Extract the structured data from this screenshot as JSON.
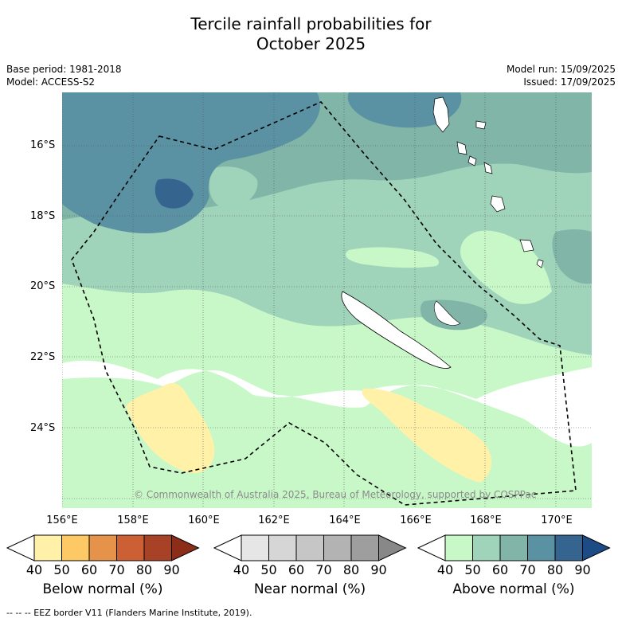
{
  "title_line1": "Tercile rainfall probabilities for",
  "title_line2": "October 2025",
  "base_period": "Base period: 1981-2018",
  "model": "Model: ACCESS-S2",
  "model_run": "Model run: 15/09/2025",
  "issued": "Issued: 17/09/2025",
  "lat_labels": [
    "16°S",
    "18°S",
    "20°S",
    "22°S",
    "24°S"
  ],
  "lon_labels": [
    "156°E",
    "158°E",
    "160°E",
    "162°E",
    "164°E",
    "166°E",
    "168°E",
    "170°E"
  ],
  "copyright": "© Commonwealth of Australia 2025, Bureau of Meteorology, supported by COSPPac",
  "legend": {
    "below": {
      "title": "Below normal (%)",
      "ticks": [
        "40",
        "50",
        "60",
        "70",
        "80",
        "90"
      ],
      "colors": [
        "#ffffff",
        "#fff1a8",
        "#fdc964",
        "#e5934a",
        "#cc5f33",
        "#a84226",
        "#8c2d1a"
      ]
    },
    "near": {
      "title": "Near normal (%)",
      "ticks": [
        "40",
        "50",
        "60",
        "70",
        "80",
        "90"
      ],
      "colors": [
        "#ffffff",
        "#e6e6e6",
        "#d6d6d6",
        "#c6c6c6",
        "#b3b3b3",
        "#9e9e9e",
        "#888888"
      ]
    },
    "above": {
      "title": "Above normal (%)",
      "ticks": [
        "40",
        "50",
        "60",
        "70",
        "80",
        "90"
      ],
      "colors": [
        "#ffffff",
        "#c8f8c8",
        "#9fd4bb",
        "#80b5a8",
        "#5a92a4",
        "#35648f",
        "#1c4b86"
      ]
    }
  },
  "footer": "--  --  -- EEZ border V11 (Flanders Marine Institute, 2019)."
}
